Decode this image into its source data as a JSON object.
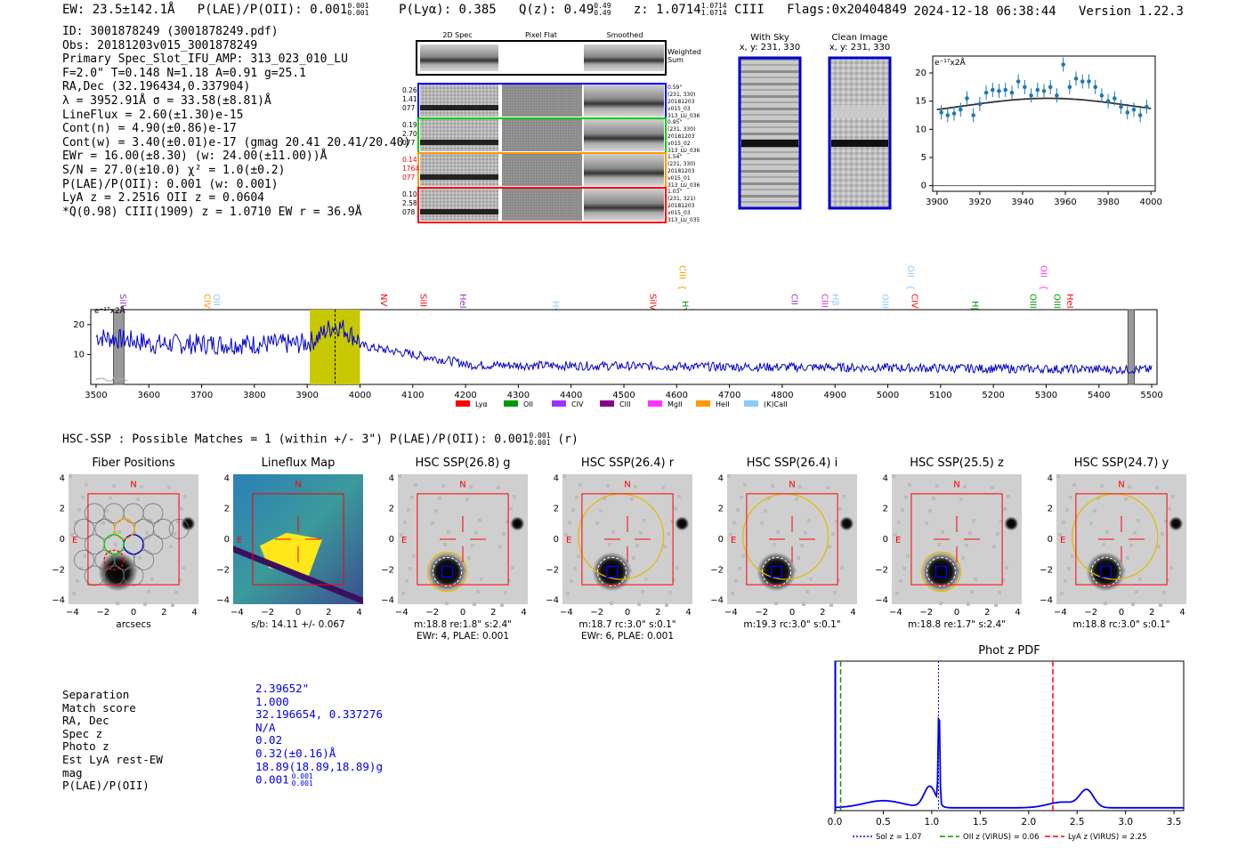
{
  "header": {
    "ew": "EW: 23.5±142.1Å",
    "plae": "P(LAE)/P(OII): 0.001",
    "plae_hi": "0.001",
    "plae_lo": "0.001",
    "plya": "P(Lyα): 0.385",
    "qz": "Q(z): 0.49",
    "qz_hi": "0.49",
    "qz_lo": "0.49",
    "z": "z: 1.0714",
    "z_hi": "1.0714",
    "z_lo": "1.0714",
    "z_line": "CIII",
    "flags": "Flags:0x20404849",
    "timestamp": "2024-12-18 06:38:44",
    "version": "Version 1.22.3"
  },
  "info": {
    "lines": [
      "ID: 3001878249 (3001878249.pdf)",
      "Obs: 20181203v015_3001878249",
      "Primary Spec_Slot_IFU_AMP: 313_023_010_LU",
      "F=2.0\"  T=0.148  N=1.18  A=0.91  g=25.1",
      "RA,Dec (32.196434,0.337904)",
      "λ = 3952.91Å  σ = 33.58(±8.81)Å",
      "LineFlux = 2.60(±1.30)e-15",
      "Cont(n) = 4.90(±0.86)e-17",
      "Cont(w) = 3.40(±0.01)e-17 (gmag 20.41 20.41/20.40)",
      "EWr = 16.00(±8.30) (w: 24.00(±11.00))Å",
      "S/N = 27.0(±10.0)  χ² = 1.0(±0.2)",
      "P(LAE)/P(OII): 0.001 (w: 0.001)",
      "LyA z = 2.2516  OII z = 0.0604",
      "*Q(0.98) CIII(1909) z = 1.0710  EW r = 36.9Å"
    ]
  },
  "cutouts_2d": {
    "col_headers": [
      "2D Spec",
      "Pixel Flat",
      "Smoothed"
    ],
    "weighted_sum": "Weighted Sum",
    "rows": [
      {
        "left": [
          "0.26",
          "1.41",
          "077"
        ],
        "right": [
          "0.59\"",
          "(231, 330)",
          "20181203",
          "v015_03",
          "313_LU_036"
        ],
        "color": "#0000ff",
        "left_color": "#000000"
      },
      {
        "left": [
          "0.19",
          "2.70",
          "077"
        ],
        "right": [
          "0.95\"",
          "(231, 330)",
          "20181203",
          "v015_02",
          "313_LU_036"
        ],
        "color": "#00cc00",
        "left_color": "#000000"
      },
      {
        "left": [
          "0.14",
          "1764",
          "077"
        ],
        "right": [
          "1.54\"",
          "(231, 330)",
          "20181203",
          "v015_01",
          "313_LU_036"
        ],
        "color": "#ff9900",
        "left_color": "#ff0000"
      },
      {
        "left": [
          "0.10",
          "2.58",
          "078"
        ],
        "right": [
          "1.03\"",
          "(231, 321)",
          "20181203",
          "v015_03",
          "313_LU_035"
        ],
        "color": "#ff0000",
        "left_color": "#000000"
      }
    ]
  },
  "sky_panels": {
    "with_sky": "With Sky",
    "with_sky_xy": "x, y: 231, 330",
    "clean": "Clean Image",
    "clean_xy": "x, y: 231, 330"
  },
  "zoom_chart": {
    "unit": "e⁻¹⁷x2Å",
    "x_ticks": [
      "3900",
      "3920",
      "3940",
      "3960",
      "3980",
      "4000"
    ],
    "y_ticks": [
      "0",
      "5",
      "10",
      "15",
      "20"
    ]
  },
  "full_spectrum": {
    "unit": "e⁻¹⁷x2Å",
    "x_ticks": [
      "3500",
      "3600",
      "3700",
      "3800",
      "3900",
      "4000",
      "4100",
      "4200",
      "4300",
      "4400",
      "4500",
      "4600",
      "4700",
      "4800",
      "4900",
      "5000",
      "5100",
      "5200",
      "5300",
      "5400",
      "5500"
    ],
    "y_ticks": [
      "10",
      "20"
    ],
    "lines": [
      {
        "name": "SiIV",
        "wl": 3541,
        "color": "#9933cc",
        "row": 1
      },
      {
        "name": "CIV",
        "wl": 3700,
        "color": "#ff9900",
        "row": 1
      },
      {
        "name": "OII",
        "wl": 3718,
        "color": "#88ccff",
        "row": 1
      },
      {
        "name": "NV",
        "wl": 4035,
        "color": "#ff0000",
        "row": 1
      },
      {
        "name": "SiII",
        "wl": 4110,
        "color": "#ff0000",
        "row": 1
      },
      {
        "name": "HeII",
        "wl": 4185,
        "color": "#9933cc",
        "row": 1
      },
      {
        "name": "Hγ",
        "wl": 4360,
        "color": "#88ccff",
        "row": 2
      },
      {
        "name": "SiIV",
        "wl": 4545,
        "color": "#ff0000",
        "row": 1
      },
      {
        "name": "CIII",
        "wl": 4600,
        "color": "#ff9900",
        "row": 0
      },
      {
        "name": "Hγ",
        "wl": 4605,
        "color": "#009900",
        "row": 2
      },
      {
        "name": "CII",
        "wl": 4813,
        "color": "#9933cc",
        "row": 1
      },
      {
        "name": "CIII",
        "wl": 4870,
        "color": "#cc33cc",
        "row": 1
      },
      {
        "name": "Hβ",
        "wl": 4890,
        "color": "#88ccff",
        "row": 1
      },
      {
        "name": "OIII",
        "wl": 4985,
        "color": "#88ccff",
        "row": 1
      },
      {
        "name": "OII",
        "wl": 5033,
        "color": "#88ccff",
        "row": 0
      },
      {
        "name": "CIV",
        "wl": 5040,
        "color": "#ff0000",
        "row": 1
      },
      {
        "name": "Hβ",
        "wl": 5155,
        "color": "#009900",
        "row": 2
      },
      {
        "name": "OII",
        "wl": 5285,
        "color": "#ff33ff",
        "row": 0
      },
      {
        "name": "OIII",
        "wl": 5265,
        "color": "#009900",
        "row": 1
      },
      {
        "name": "OIII",
        "wl": 5310,
        "color": "#009900",
        "row": 1
      },
      {
        "name": "HeII",
        "wl": 5335,
        "color": "#ff0000",
        "row": 1
      }
    ],
    "legend": [
      {
        "label": "Lyα",
        "color": "#ff0000"
      },
      {
        "label": "OII",
        "color": "#009900"
      },
      {
        "label": "CIV",
        "color": "#9933ff"
      },
      {
        "label": "CIII",
        "color": "#880088"
      },
      {
        "label": "MgII",
        "color": "#ff33ff"
      },
      {
        "label": "HeII",
        "color": "#ff9900"
      },
      {
        "label": "(K)CaII",
        "color": "#88ccff"
      }
    ]
  },
  "hsc": {
    "summary": "HSC-SSP : Possible Matches = 1 (within +/- 3\")  P(LAE)/P(OII): 0.001",
    "summary_hi": "0.001",
    "summary_lo": "0.001",
    "summary_tail": "(r)",
    "panels": [
      {
        "title": "Fiber Positions",
        "caption1": "arcsecs",
        "caption2": ""
      },
      {
        "title": "Lineflux Map",
        "caption1": "s/b: 14.11 +/- 0.067",
        "caption2": ""
      },
      {
        "title": "HSC SSP(26.8) g",
        "caption1": "m:18.8  re:1.8\"  s:2.4\"",
        "caption2": "EWr: 4, PLAE: 0.001"
      },
      {
        "title": "HSC SSP(26.4) r",
        "caption1": "m:18.7 rc:3.0\"  s:0.1\"",
        "caption2": "EWr: 6, PLAE: 0.001"
      },
      {
        "title": "HSC SSP(26.4) i",
        "caption1": "m:19.3 rc:3.0\"  s:0.1\"",
        "caption2": ""
      },
      {
        "title": "HSC SSP(25.5) z",
        "caption1": "m:18.8  re:1.7\"  s:2.4\"",
        "caption2": ""
      },
      {
        "title": "HSC SSP(24.7) y",
        "caption1": "m:18.8 rc:3.0\"  s:0.1\"",
        "caption2": ""
      }
    ],
    "ticks": [
      "−4",
      "−2",
      "0",
      "2",
      "4"
    ],
    "compass_n": "N",
    "compass_e": "E"
  },
  "match": {
    "labels": [
      "Separation",
      "Match score",
      "RA, Dec",
      "Spec z",
      "Photo z",
      "Est LyA rest-EW",
      "mag",
      "P(LAE)/P(OII)"
    ],
    "values": [
      "2.39652\"",
      "1.000",
      "32.196654, 0.337276",
      "N/A",
      "0.02",
      "0.32(±0.16)Å",
      "18.89(18.89,18.89)g",
      "0.001"
    ],
    "plae_hi": "0.001",
    "plae_lo": "0.001"
  },
  "photz": {
    "title": "Phot z PDF",
    "x_ticks": [
      "0.0",
      "0.5",
      "1.0",
      "1.5",
      "2.0",
      "2.5",
      "3.0",
      "3.5"
    ],
    "legend": [
      {
        "label": "Sol z = 1.07",
        "color": "#0000ff"
      },
      {
        "label": "OII z (VIRUS) = 0.06",
        "color": "#009900"
      },
      {
        "label": "LyA z (VIRUS) = 2.25",
        "color": "#ff0000"
      }
    ]
  },
  "chart_data": [
    {
      "type": "scatter",
      "title": "",
      "ylabel": "e⁻¹⁷x2Å",
      "xlim": [
        3898,
        4002
      ],
      "ylim": [
        -1,
        23
      ],
      "x": [
        3902,
        3905,
        3908,
        3911,
        3914,
        3917,
        3920,
        3923,
        3926,
        3929,
        3932,
        3935,
        3938,
        3941,
        3944,
        3947,
        3950,
        3953,
        3956,
        3959,
        3962,
        3965,
        3968,
        3971,
        3974,
        3977,
        3980,
        3983,
        3986,
        3989,
        3992,
        3995,
        3998
      ],
      "values": [
        13,
        12.5,
        12.8,
        13.5,
        15.5,
        12.5,
        14.5,
        16.5,
        17,
        16.8,
        17,
        16.5,
        18.5,
        17.5,
        16,
        17,
        16.8,
        17.5,
        16,
        21.5,
        17.5,
        19,
        18.5,
        18.5,
        17.5,
        16,
        15,
        15.5,
        14,
        13,
        13.5,
        12.5,
        14
      ],
      "model_peak": 15.5,
      "model_center": 3952,
      "model_base": 12
    },
    {
      "type": "line",
      "title": "",
      "xlim": [
        3490,
        5510
      ],
      "ylim": [
        0,
        25
      ],
      "highlight_range": [
        3905,
        4000
      ],
      "center": 3952.9,
      "masked": [
        [
          3533,
          3553
        ],
        [
          5455,
          5467
        ]
      ]
    },
    {
      "type": "line",
      "title": "Phot z PDF",
      "xlim": [
        0,
        3.6
      ],
      "peaks": [
        {
          "z": 0.98,
          "h": 0.25
        },
        {
          "z": 1.07,
          "h": 0.7
        },
        {
          "z": 2.6,
          "h": 0.2
        }
      ],
      "sol_z": 1.07,
      "oii_z": 0.06,
      "lya_z": 2.25
    }
  ]
}
